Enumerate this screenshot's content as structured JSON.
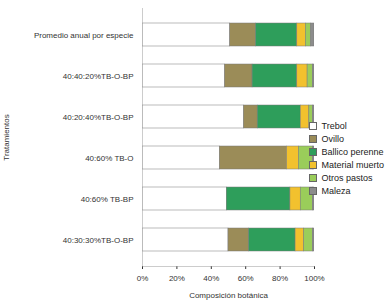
{
  "chart_data": {
    "type": "bar",
    "orientation": "horizontal",
    "stacked": true,
    "x_label": "Composición botánica",
    "y_label": "Tratamientos",
    "categories": [
      "Promedio anual por especie",
      "40:40:20%TB-O-BP",
      "40:20:40%TB-O-BP",
      "40:60% TB-O",
      "40:60% TB-BP",
      "40:30:30%TB-O-BP"
    ],
    "series": [
      {
        "name": "Trebol",
        "color": "#ffffff",
        "values": [
          51,
          48,
          59,
          45,
          49,
          50
        ]
      },
      {
        "name": "Ovillo",
        "color": "#9b8c58",
        "values": [
          15,
          16,
          8,
          39,
          0,
          12
        ]
      },
      {
        "name": "Ballico perenne",
        "color": "#2e9e5b",
        "values": [
          24,
          26,
          25,
          0,
          37,
          27
        ]
      },
      {
        "name": "Material muerto",
        "color": "#f2c12e",
        "values": [
          5,
          6,
          5,
          7,
          6,
          5
        ]
      },
      {
        "name": "Otros pastos",
        "color": "#9acd5a",
        "values": [
          3,
          3,
          2,
          8,
          7,
          5
        ]
      },
      {
        "name": "Maleza",
        "color": "#8c8c8c",
        "values": [
          2,
          1,
          1,
          1,
          1,
          1
        ]
      }
    ],
    "xlim": [
      0,
      100
    ],
    "xticks": [
      {
        "value": 0,
        "label": "0%"
      },
      {
        "value": 20,
        "label": "20%"
      },
      {
        "value": 40,
        "label": "40%"
      },
      {
        "value": 60,
        "label": "60%"
      },
      {
        "value": 80,
        "label": "80%"
      },
      {
        "value": 100,
        "label": "100%"
      }
    ],
    "legend": "right"
  }
}
